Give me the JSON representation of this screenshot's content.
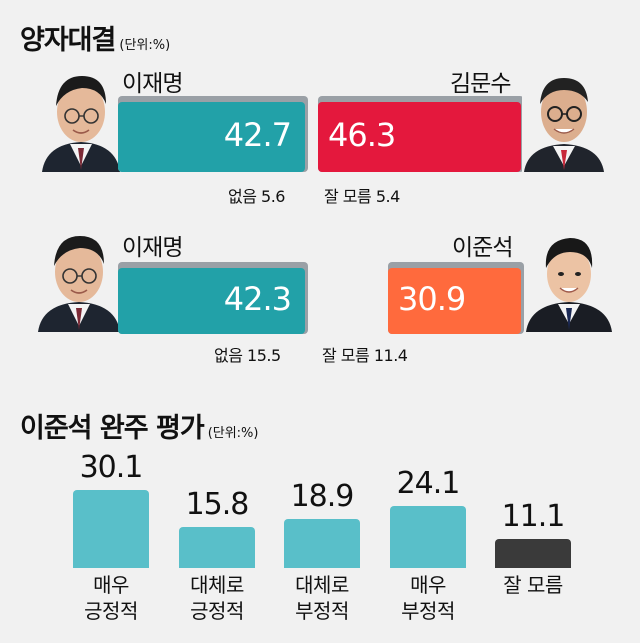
{
  "section1": {
    "title": "양자대결",
    "unit": "(단위:%)"
  },
  "matchups": [
    {
      "left": {
        "name": "이재명",
        "value": "42.7",
        "color": "#22a1a8",
        "fill": 0.427
      },
      "right": {
        "name": "김문수",
        "value": "46.3",
        "color": "#e4183d",
        "fill": 0.463
      },
      "notes": {
        "none": "없음 5.6",
        "dontknow": "잘 모름 5.4"
      }
    },
    {
      "left": {
        "name": "이재명",
        "value": "42.3",
        "color": "#22a1a8",
        "fill": 0.423
      },
      "right": {
        "name": "이준석",
        "value": "30.9",
        "color": "#ff6a3d",
        "fill": 0.309
      },
      "notes": {
        "none": "없음 15.5",
        "dontknow": "잘 모름 11.4"
      }
    }
  ],
  "section2": {
    "title": "이준석 완주 평가",
    "unit": "(단위:%)"
  },
  "chart_data": {
    "type": "bar",
    "title": "이준석 완주 평가",
    "categories": [
      "매우\n긍정적",
      "대체로\n긍정적",
      "대체로\n부정적",
      "매우\n부정적",
      "잘 모름"
    ],
    "values": [
      30.1,
      15.8,
      18.9,
      24.1,
      11.1
    ],
    "value_labels": [
      "30.1",
      "15.8",
      "18.9",
      "24.1",
      "11.1"
    ],
    "label_lines": [
      [
        "매우",
        "긍정적"
      ],
      [
        "대체로",
        "긍정적"
      ],
      [
        "대체로",
        "부정적"
      ],
      [
        "매우",
        "부정적"
      ],
      [
        "잘 모름"
      ]
    ],
    "colors": [
      "#59bfc9",
      "#59bfc9",
      "#59bfc9",
      "#59bfc9",
      "#3a3a3a"
    ],
    "ylim": [
      0,
      35
    ],
    "grid": false,
    "legend": "none"
  }
}
